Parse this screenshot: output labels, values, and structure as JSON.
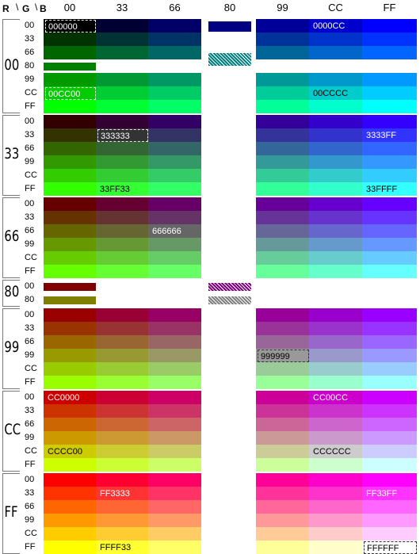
{
  "corner": {
    "r": "R",
    "g": "G",
    "b": "B"
  },
  "blue_headers": [
    "00",
    "33",
    "66",
    "80",
    "99",
    "CC",
    "FF"
  ],
  "red_groups": [
    "00",
    "33",
    "66",
    "80",
    "99",
    "CC",
    "FF"
  ],
  "green_rows_main": [
    "00",
    "33",
    "66",
    "99",
    "CC",
    "FF"
  ],
  "green_rows_80": [
    "00",
    "80"
  ],
  "labels": [
    {
      "text": "000000",
      "r": "00",
      "g": "00",
      "b": "00",
      "dashed": true
    },
    {
      "text": "0000CC",
      "r": "00",
      "g": "00",
      "b": "CC",
      "dashed": false
    },
    {
      "text": "00CC00",
      "r": "00",
      "g": "CC",
      "b": "00",
      "dashed": true
    },
    {
      "text": "00CCCC",
      "r": "00",
      "g": "CC",
      "b": "CC",
      "dashed": false
    },
    {
      "text": "333333",
      "r": "33",
      "g": "33",
      "b": "33",
      "dashed": true
    },
    {
      "text": "3333FF",
      "r": "33",
      "g": "33",
      "b": "FF",
      "dashed": false
    },
    {
      "text": "33FF33",
      "r": "33",
      "g": "FF",
      "b": "33",
      "dashed": false
    },
    {
      "text": "33FFFF",
      "r": "33",
      "g": "FF",
      "b": "FF",
      "dashed": false
    },
    {
      "text": "666666",
      "r": "66",
      "g": "66",
      "b": "66",
      "dashed": false
    },
    {
      "text": "999999",
      "r": "99",
      "g": "99",
      "b": "99",
      "dashed": true
    },
    {
      "text": "CC0000",
      "r": "CC",
      "g": "00",
      "b": "00",
      "dashed": false
    },
    {
      "text": "CC00CC",
      "r": "CC",
      "g": "00",
      "b": "CC",
      "dashed": false
    },
    {
      "text": "CCCC00",
      "r": "CC",
      "g": "CC",
      "b": "00",
      "dashed": false
    },
    {
      "text": "CCCCCC",
      "r": "CC",
      "g": "CC",
      "b": "CC",
      "dashed": false
    },
    {
      "text": "FF3333",
      "r": "FF",
      "g": "33",
      "b": "33",
      "dashed": false
    },
    {
      "text": "FF33FF",
      "r": "FF",
      "g": "33",
      "b": "FF",
      "dashed": false
    },
    {
      "text": "FFFF33",
      "r": "FF",
      "g": "FF",
      "b": "33",
      "dashed": false
    },
    {
      "text": "FFFFFF",
      "r": "FF",
      "g": "FF",
      "b": "FF",
      "dashed": true
    }
  ]
}
